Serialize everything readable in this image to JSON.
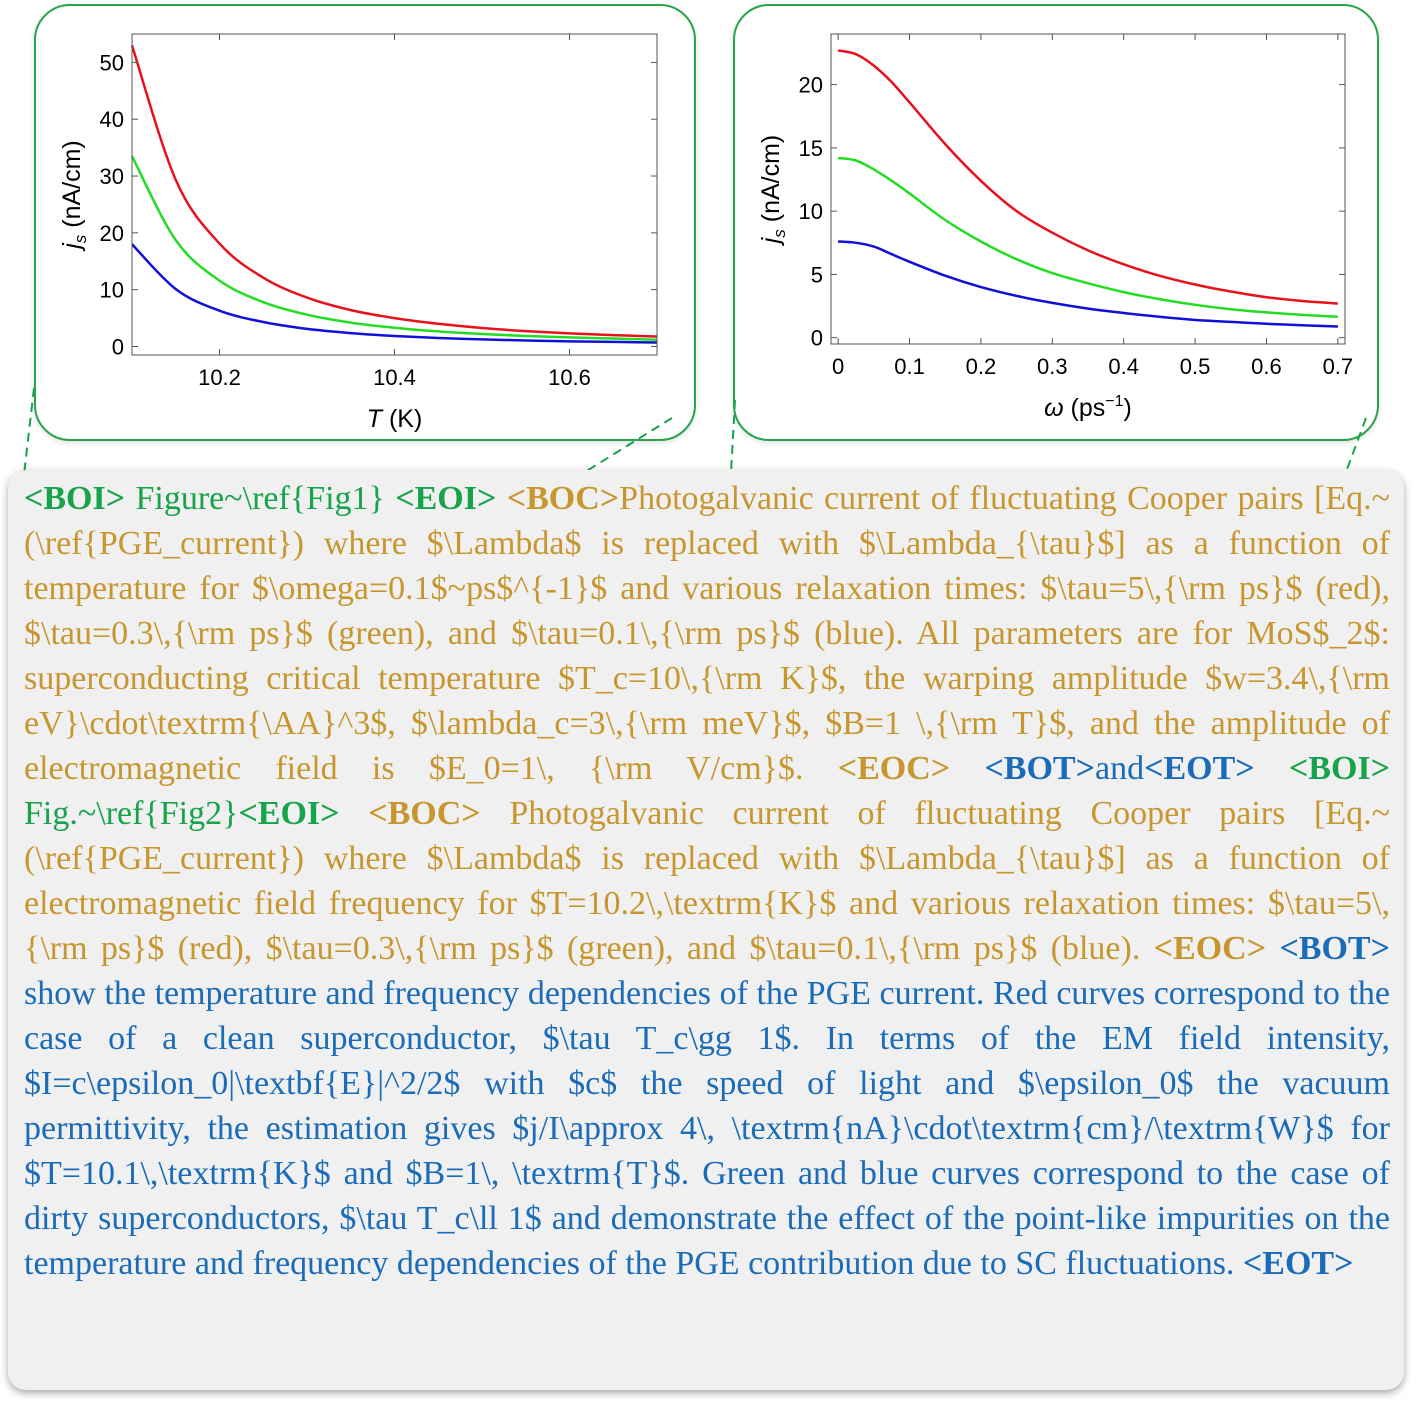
{
  "colors": {
    "image_tag": "#16a34a",
    "caption_text": "#c8962e",
    "body_text": "#1a6bb8",
    "card_border": "#2aa34a",
    "red": "#e8121c",
    "green": "#22dd22",
    "blue": "#1010d8"
  },
  "chart_data": [
    {
      "type": "line",
      "title": "",
      "xlabel": "T (K)",
      "ylabel": "j_s (nA/cm)",
      "xlim": [
        10.1,
        10.7
      ],
      "ylim": [
        -1.5,
        55
      ],
      "xticks": [
        10.2,
        10.4,
        10.6
      ],
      "yticks": [
        0,
        10,
        20,
        30,
        40,
        50
      ],
      "grid": false,
      "series": [
        {
          "color": "red",
          "x": [
            10.1,
            10.15,
            10.2,
            10.25,
            10.3,
            10.35,
            10.4,
            10.45,
            10.5,
            10.55,
            10.6,
            10.65,
            10.7
          ],
          "values": [
            53,
            29.3,
            18.1,
            12.1,
            8.6,
            6.4,
            5.0,
            4.0,
            3.25,
            2.7,
            2.3,
            2.0,
            1.75
          ]
        },
        {
          "color": "green",
          "x": [
            10.1,
            10.15,
            10.2,
            10.25,
            10.3,
            10.35,
            10.4,
            10.45,
            10.5,
            10.55,
            10.6,
            10.65,
            10.7
          ],
          "values": [
            33.5,
            18.7,
            11.6,
            7.8,
            5.6,
            4.2,
            3.3,
            2.65,
            2.2,
            1.85,
            1.6,
            1.4,
            1.2
          ]
        },
        {
          "color": "blue",
          "x": [
            10.1,
            10.15,
            10.2,
            10.25,
            10.3,
            10.35,
            10.4,
            10.45,
            10.5,
            10.55,
            10.6,
            10.65,
            10.7
          ],
          "values": [
            18,
            10.1,
            6.3,
            4.3,
            3.1,
            2.35,
            1.85,
            1.5,
            1.25,
            1.05,
            0.9,
            0.8,
            0.7
          ]
        }
      ]
    },
    {
      "type": "line",
      "title": "",
      "xlabel": "ω (ps⁻¹)",
      "ylabel": "j_s (nA/cm)",
      "xlim": [
        -0.01,
        0.71
      ],
      "ylim": [
        -0.5,
        24
      ],
      "xticks": [
        0,
        0.1,
        0.2,
        0.3,
        0.4,
        0.5,
        0.6,
        0.7
      ],
      "yticks": [
        0,
        5,
        10,
        15,
        20
      ],
      "grid": false,
      "series": [
        {
          "color": "red",
          "x": [
            0,
            0.025,
            0.05,
            0.075,
            0.1,
            0.15,
            0.2,
            0.25,
            0.3,
            0.35,
            0.4,
            0.45,
            0.5,
            0.55,
            0.6,
            0.65,
            0.7
          ],
          "values": [
            22.7,
            22.4,
            21.5,
            20.2,
            18.6,
            15.3,
            12.4,
            10.0,
            8.3,
            6.9,
            5.8,
            4.9,
            4.2,
            3.65,
            3.2,
            2.9,
            2.7
          ]
        },
        {
          "color": "green",
          "x": [
            0,
            0.025,
            0.05,
            0.075,
            0.1,
            0.15,
            0.2,
            0.25,
            0.3,
            0.35,
            0.4,
            0.45,
            0.5,
            0.55,
            0.6,
            0.65,
            0.7
          ],
          "values": [
            14.2,
            14.0,
            13.3,
            12.4,
            11.4,
            9.3,
            7.6,
            6.2,
            5.1,
            4.3,
            3.6,
            3.05,
            2.6,
            2.25,
            2.0,
            1.8,
            1.65
          ]
        },
        {
          "color": "blue",
          "x": [
            0,
            0.025,
            0.05,
            0.075,
            0.1,
            0.15,
            0.2,
            0.25,
            0.3,
            0.35,
            0.4,
            0.45,
            0.5,
            0.55,
            0.6,
            0.65,
            0.7
          ],
          "values": [
            7.6,
            7.5,
            7.2,
            6.6,
            6.0,
            4.9,
            4.0,
            3.3,
            2.75,
            2.3,
            1.95,
            1.65,
            1.4,
            1.25,
            1.1,
            0.98,
            0.88
          ]
        }
      ]
    }
  ],
  "caption": {
    "boi_1": "<BOI>",
    "fig1_ref": " Figure~\\ref{Fig1} ",
    "eoi_1": "<EOI>",
    "boc_1": "<BOC>",
    "caption_1": "Photogalvanic current of fluctuating Cooper pairs [Eq.~(\\ref{PGE_current}) where $\\Lambda$ is replaced with $\\Lambda_{\\tau}$] as a function of temperature for $\\omega=0.1$~ps$^{-1}$ and various relaxation times: $\\tau=5\\,{\\rm ps}$ (red), $\\tau=0.3\\,{\\rm ps}$ (green), and $\\tau=0.1\\,{\\rm ps}$ (blue). All parameters are for MoS$_2$: superconducting critical temperature $T_c=10\\,{\\rm K}$, the warping amplitude $w=3.4\\,{\\rm eV}\\cdot\\textrm{\\AA}^3$, $\\lambda_c=3\\,{\\rm meV}$, $B=1 \\,{\\rm T}$, and the amplitude of electromagnetic field is $E_0=1\\, {\\rm V/cm}$. ",
    "eoc_1": "<EOC>",
    "bot_1": "<BOT>",
    "text_and": "and",
    "eot_1": "<EOT>",
    "boi_2": "<BOI>",
    "fig2_ref": " Fig.~\\ref{Fig2}",
    "eoi_2": "<EOI>",
    "boc_2": "<BOC>",
    "caption_2": " Photogalvanic current of fluctuating Cooper pairs [Eq.~(\\ref{PGE_current}) where $\\Lambda$ is replaced with $\\Lambda_{\\tau}$] as a function of electromagnetic field frequency for $T=10.2\\,\\textrm{K}$ and various relaxation times: $\\tau=5\\,{\\rm ps}$ (red), $\\tau=0.3\\,{\\rm ps}$ (green), and $\\tau=0.1\\,{\\rm ps}$ (blue). ",
    "eoc_2": "<EOC>",
    "bot_2": "<BOT>",
    "body": " show the temperature and frequency dependencies of the PGE current.  Red curves correspond to the case of a clean superconductor, $\\tau T_c\\gg 1$.  In terms of the EM field intensity, $I=c\\epsilon_0|\\textbf{E}|^2/2$ with $c$ the speed of light and $\\epsilon_0$ the vacuum permittivity, the estimation gives $j/I\\approx 4\\, \\textrm{nA}\\cdot\\textrm{cm}/\\textrm{W}$ for $T=10.1\\,\\textrm{K}$ and $B=1\\, \\textrm{T}$. Green and blue curves correspond to the case of dirty superconductors, $\\tau T_c\\ll 1$ and demonstrate the effect of the point-like impurities on the temperature and frequency dependencies of the PGE contribution due to SC fluctuations. ",
    "eot_2": "<EOT>"
  }
}
